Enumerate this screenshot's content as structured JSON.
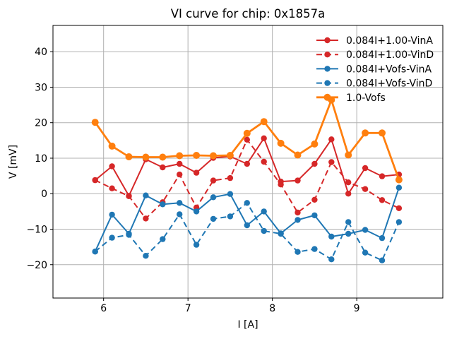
{
  "window_title": "VI curve figure",
  "chart_data": {
    "type": "line",
    "title": "VI curve for chip: 0x1857a",
    "xlabel": "I [A]",
    "ylabel": "V [mV]",
    "xlim": [
      5.4,
      10.02
    ],
    "ylim": [
      -29.4,
      47.4
    ],
    "xticks": [
      6,
      7,
      8,
      9
    ],
    "yticks": [
      -20,
      -10,
      0,
      10,
      20,
      30,
      40
    ],
    "grid": true,
    "legend": {
      "position": "upper right",
      "frame": false
    },
    "x": [
      5.9,
      6.1,
      6.3,
      6.5,
      6.7,
      6.9,
      7.1,
      7.3,
      7.5,
      7.7,
      7.9,
      8.1,
      8.3,
      8.5,
      8.7,
      8.9,
      9.1,
      9.3,
      9.5
    ],
    "series": [
      {
        "name": "0.084I+1.00-VinA",
        "color": "#d62728",
        "linestyle": "solid",
        "marker": "circle",
        "linewidth": 2,
        "marker_radius": 4.2,
        "values": [
          3.8,
          7.7,
          -0.6,
          9.7,
          7.4,
          8.4,
          5.9,
          10.1,
          10.5,
          8.4,
          15.6,
          3.4,
          3.7,
          8.4,
          15.3,
          0.0,
          7.2,
          4.9,
          5.4
        ]
      },
      {
        "name": "0.084I+1.00-VinD",
        "color": "#d62728",
        "linestyle": "dashed",
        "marker": "circle",
        "linewidth": 2,
        "marker_radius": 4.2,
        "values": [
          3.8,
          1.5,
          -0.7,
          -7.0,
          -2.4,
          5.4,
          -3.9,
          3.7,
          4.4,
          15.2,
          9.0,
          2.6,
          -5.3,
          -1.7,
          8.9,
          3.2,
          1.3,
          -1.8,
          -4.1
        ]
      },
      {
        "name": "0.084I+Vofs-VinA",
        "color": "#1f77b4",
        "linestyle": "solid",
        "marker": "circle",
        "linewidth": 2,
        "marker_radius": 4.2,
        "values": [
          -16.3,
          -5.9,
          -11.3,
          -0.5,
          -3.0,
          -2.6,
          -5.0,
          -1.0,
          -0.1,
          -8.9,
          -5.0,
          -11.2,
          -7.4,
          -6.1,
          -12.1,
          -11.3,
          -10.2,
          -12.5,
          1.7
        ]
      },
      {
        "name": "0.084I+Vofs-VinD",
        "color": "#1f77b4",
        "linestyle": "dashed",
        "marker": "circle",
        "linewidth": 2,
        "marker_radius": 4.2,
        "values": [
          -16.3,
          -12.4,
          -11.6,
          -17.5,
          -12.8,
          -5.8,
          -14.4,
          -7.1,
          -6.4,
          -2.6,
          -10.5,
          -11.3,
          -16.4,
          -15.6,
          -18.5,
          -8.0,
          -16.6,
          -18.8,
          -8.0
        ]
      },
      {
        "name": "1.0-Vofs",
        "color": "#ff7f0e",
        "linestyle": "solid",
        "marker": "circle",
        "linewidth": 2.8,
        "marker_radius": 5,
        "values": [
          20.1,
          13.4,
          10.4,
          10.3,
          10.3,
          10.7,
          10.8,
          10.7,
          10.8,
          17.0,
          20.3,
          14.2,
          10.9,
          14.0,
          26.4,
          10.9,
          17.1,
          17.1,
          3.9
        ]
      }
    ]
  }
}
